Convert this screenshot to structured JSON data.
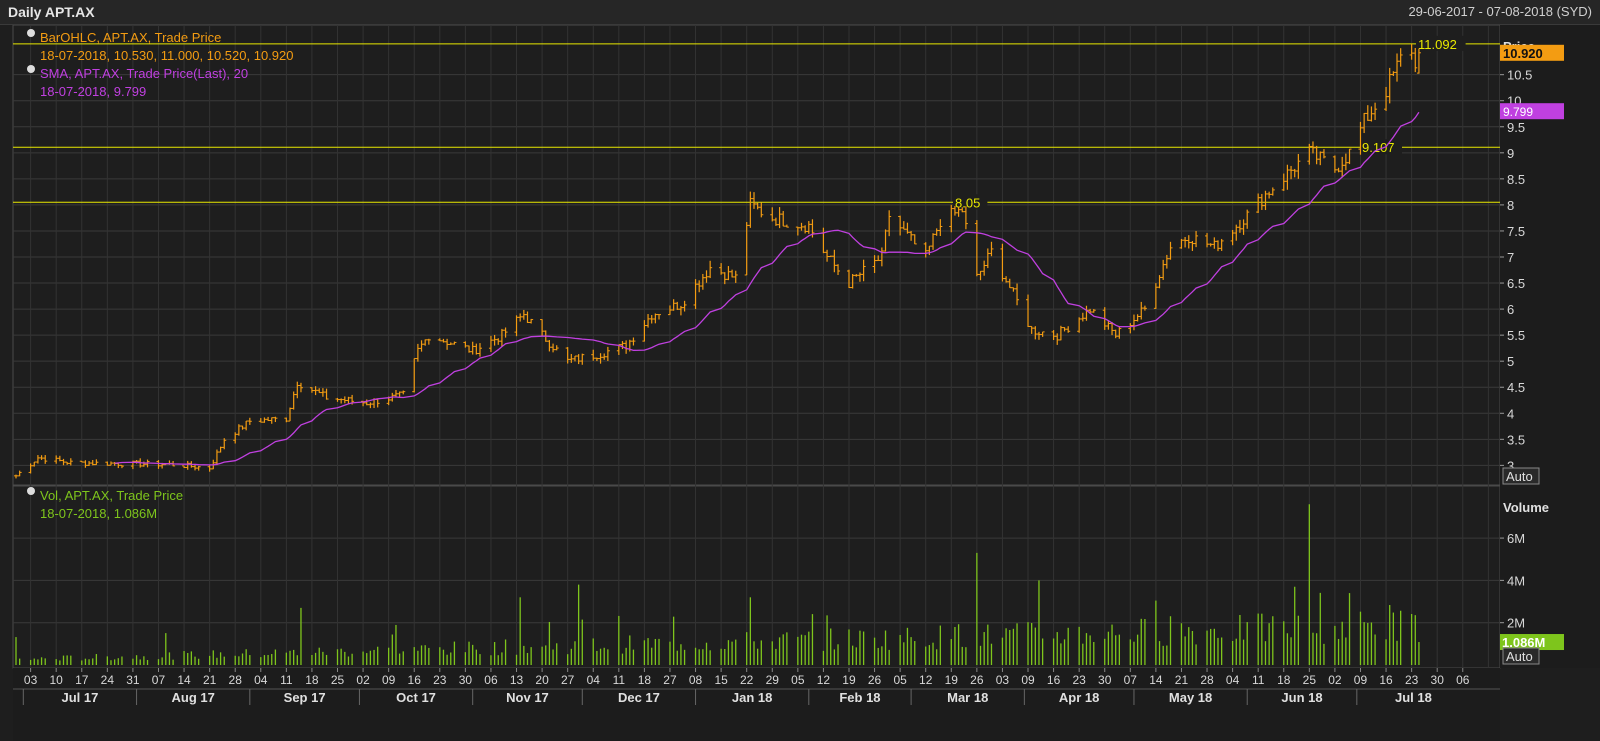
{
  "window": {
    "title": "Daily APT.AX",
    "date_range": "29-06-2017 - 07-08-2018 (SYD)"
  },
  "colors": {
    "price": "#f39c12",
    "sma": "#c040e0",
    "volume": "#7ec51c",
    "level": "#e8e800",
    "grid": "#3a3a3a"
  },
  "legend": {
    "price_line1": "BarOHLC, APT.AX, Trade Price",
    "price_line2": "18-07-2018, 10.530, 11.000, 10.520, 10.920",
    "sma_line1": "SMA, APT.AX, Trade Price(Last),  20",
    "sma_line2": "18-07-2018, 9.799",
    "vol_line1": "Vol, APT.AX, Trade Price",
    "vol_line2": "18-07-2018, 1.086M"
  },
  "price_axis": {
    "label": "Price",
    "current_badge": "10.920",
    "sma_badge": "9.799",
    "auto_label": "Auto"
  },
  "volume_axis": {
    "label": "Volume",
    "current_badge": "1.086M",
    "auto_label": "Auto"
  },
  "levels": [
    {
      "value": 11.092,
      "label": "11.092"
    },
    {
      "value": 9.107,
      "label": "9.107"
    },
    {
      "value": 8.05,
      "label": "8.05"
    }
  ],
  "chart_data": [
    {
      "type": "candlestick_ohlc",
      "series": [
        {
          "name": "BarOHLC, APT.AX, Trade Price"
        },
        {
          "name": "SMA, APT.AX, Trade Price(Last),  20"
        }
      ],
      "y_ticks": [
        "3",
        "3.5",
        "4",
        "4.5",
        "5",
        "5.5",
        "6",
        "6.5",
        "7",
        "7.5",
        "8",
        "8.5",
        "9",
        "9.5",
        "10",
        "10.5"
      ],
      "ylim": [
        2.7,
        11.3
      ],
      "anchors": [
        {
          "date": "2017-06-29",
          "close": 2.8
        },
        {
          "date": "2017-07-05",
          "close": 3.15
        },
        {
          "date": "2017-07-14",
          "close": 3.05
        },
        {
          "date": "2017-08-10",
          "close": 3.02
        },
        {
          "date": "2017-08-21",
          "close": 2.95
        },
        {
          "date": "2017-08-25",
          "close": 3.5
        },
        {
          "date": "2017-09-01",
          "close": 3.85
        },
        {
          "date": "2017-09-11",
          "close": 3.9
        },
        {
          "date": "2017-09-14",
          "close": 4.6
        },
        {
          "date": "2017-09-22",
          "close": 4.3
        },
        {
          "date": "2017-10-03",
          "close": 4.2
        },
        {
          "date": "2017-10-13",
          "close": 4.35
        },
        {
          "date": "2017-10-17",
          "close": 5.2
        },
        {
          "date": "2017-10-20",
          "close": 5.5
        },
        {
          "date": "2017-11-01",
          "close": 5.2
        },
        {
          "date": "2017-11-09",
          "close": 5.5
        },
        {
          "date": "2017-11-15",
          "close": 5.9
        },
        {
          "date": "2017-11-20",
          "close": 5.5
        },
        {
          "date": "2017-11-27",
          "close": 5.0
        },
        {
          "date": "2017-12-06",
          "close": 5.15
        },
        {
          "date": "2017-12-13",
          "close": 5.3
        },
        {
          "date": "2017-12-20",
          "close": 5.9
        },
        {
          "date": "2017-12-28",
          "close": 6.1
        },
        {
          "date": "2018-01-05",
          "close": 6.8
        },
        {
          "date": "2018-01-12",
          "close": 6.6
        },
        {
          "date": "2018-01-16",
          "close": 8.0
        },
        {
          "date": "2018-01-22",
          "close": 7.75
        },
        {
          "date": "2018-02-01",
          "close": 7.6
        },
        {
          "date": "2018-02-06",
          "close": 7.0
        },
        {
          "date": "2018-02-12",
          "close": 6.5
        },
        {
          "date": "2018-02-21",
          "close": 7.0
        },
        {
          "date": "2018-02-23",
          "close": 7.8
        },
        {
          "date": "2018-03-05",
          "close": 7.0
        },
        {
          "date": "2018-03-09",
          "close": 7.7
        },
        {
          "date": "2018-03-15",
          "close": 7.9
        },
        {
          "date": "2018-03-19",
          "close": 6.6
        },
        {
          "date": "2018-03-23",
          "close": 7.1
        },
        {
          "date": "2018-04-03",
          "close": 5.6
        },
        {
          "date": "2018-04-10",
          "close": 5.5
        },
        {
          "date": "2018-04-19",
          "close": 6.0
        },
        {
          "date": "2018-04-26",
          "close": 5.5
        },
        {
          "date": "2018-05-04",
          "close": 6.0
        },
        {
          "date": "2018-05-11",
          "close": 7.2
        },
        {
          "date": "2018-05-16",
          "close": 7.4
        },
        {
          "date": "2018-05-23",
          "close": 7.2
        },
        {
          "date": "2018-06-01",
          "close": 7.8
        },
        {
          "date": "2018-06-06",
          "close": 8.2
        },
        {
          "date": "2018-06-12",
          "close": 8.6
        },
        {
          "date": "2018-06-18",
          "close": 9.0
        },
        {
          "date": "2018-06-25",
          "close": 8.7
        },
        {
          "date": "2018-06-29",
          "close": 9.0
        },
        {
          "date": "2018-07-03",
          "close": 9.6
        },
        {
          "date": "2018-07-09",
          "close": 10.2
        },
        {
          "date": "2018-07-13",
          "close": 10.8
        },
        {
          "date": "2018-07-16",
          "close": 11.0
        },
        {
          "date": "2018-07-17",
          "close": 10.6
        },
        {
          "date": "2018-07-18",
          "open": 10.53,
          "high": 11.0,
          "low": 10.52,
          "close": 10.92
        }
      ],
      "sma_last": {
        "date": "2018-07-18",
        "value": 9.799
      }
    },
    {
      "type": "bar",
      "series": [
        {
          "name": "Vol, APT.AX, Trade Price"
        }
      ],
      "y_ticks": [
        "2M",
        "4M",
        "6M"
      ],
      "ylim": [
        0,
        7.8
      ],
      "last": {
        "date": "2018-07-18",
        "value": 1.086
      },
      "spikes": [
        {
          "date": "2017-09-15",
          "value": 2.7
        },
        {
          "date": "2017-11-14",
          "value": 3.2
        },
        {
          "date": "2017-11-30",
          "value": 3.8
        },
        {
          "date": "2018-01-16",
          "value": 3.2
        },
        {
          "date": "2018-03-19",
          "value": 5.3
        },
        {
          "date": "2018-04-05",
          "value": 4.0
        },
        {
          "date": "2018-06-14",
          "value": 3.7
        },
        {
          "date": "2018-06-18",
          "value": 7.6
        },
        {
          "date": "2018-06-29",
          "value": 3.4
        }
      ]
    }
  ],
  "x_axis": {
    "days": [
      "03",
      "10",
      "17",
      "24",
      "31",
      "07",
      "14",
      "21",
      "28",
      "04",
      "11",
      "18",
      "25",
      "02",
      "09",
      "16",
      "23",
      "30",
      "06",
      "13",
      "20",
      "27",
      "04",
      "11",
      "18",
      "27",
      "08",
      "15",
      "22",
      "29",
      "05",
      "12",
      "19",
      "26",
      "05",
      "12",
      "19",
      "26",
      "03",
      "09",
      "16",
      "23",
      "30",
      "07",
      "14",
      "21",
      "28",
      "04",
      "11",
      "18",
      "25",
      "02",
      "09",
      "16",
      "23",
      "30",
      "06"
    ],
    "months": [
      "Jul 17",
      "Aug 17",
      "Sep 17",
      "Oct 17",
      "Nov 17",
      "Dec 17",
      "Jan 18",
      "Feb 18",
      "Mar 18",
      "Apr 18",
      "May 18",
      "Jun 18",
      "Jul 18"
    ]
  }
}
